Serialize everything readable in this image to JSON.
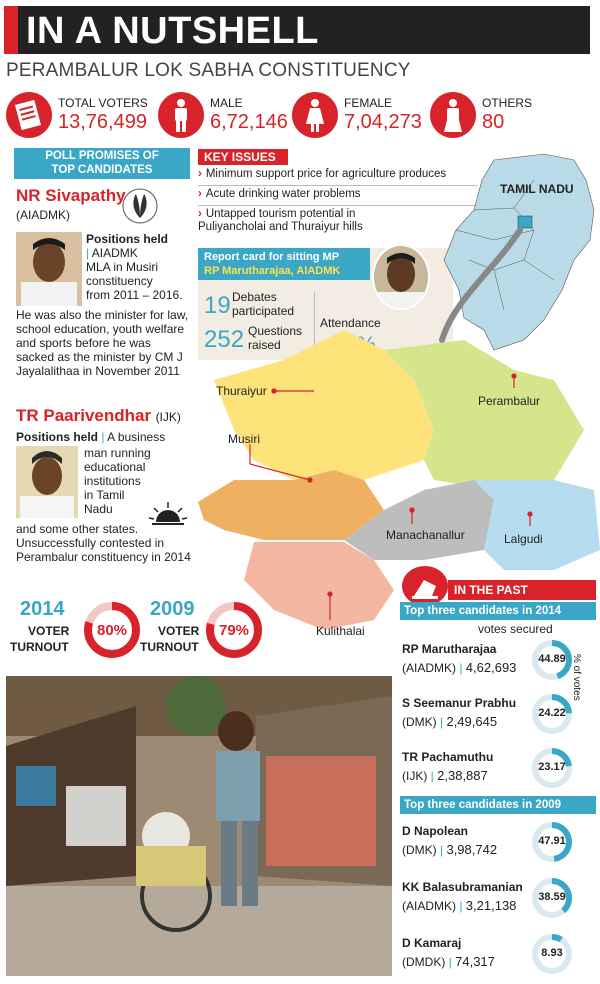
{
  "title": "IN A NUTSHELL",
  "subtitle": "PERAMBALUR LOK SABHA CONSTITUENCY",
  "stats": [
    {
      "label": "TOTAL VOTERS",
      "value": "13,76,499",
      "icon": "ballot-icon"
    },
    {
      "label": "MALE",
      "value": "6,72,146",
      "icon": "male-icon"
    },
    {
      "label": "FEMALE",
      "value": "7,04,273",
      "icon": "female-icon"
    },
    {
      "label": "OTHERS",
      "value": "80",
      "icon": "person-icon"
    }
  ],
  "poll_promises": {
    "header_line1": "POLL PROMISES OF",
    "header_line2": "TOP CANDIDATES",
    "candidate1": {
      "name": "NR Sivapathy",
      "party": "(AIADMK)",
      "positions_label": "Positions held",
      "positions_text1": "AIADMK",
      "positions_text2": "MLA in Musiri",
      "positions_text3": "constituency",
      "positions_text4": "from 2011 – 2016.",
      "body": "He was also the minister for law, school education, youth welfare and sports before he was sacked as the minister by CM J Jayalalithaa in November 2011"
    },
    "candidate2": {
      "name": "TR Paarivendhar",
      "party": "(IJK)",
      "positions_label": "Positions held",
      "positions_line1": "A business",
      "positions_line2": "man running",
      "positions_line3": "educational",
      "positions_line4": "institutions",
      "positions_line5": "in Tamil",
      "positions_line6": "Nadu",
      "body": "and some other states. Unsuccessfully contested in Perambalur constituency in 2014"
    }
  },
  "key_issues": {
    "header": "KEY ISSUES",
    "items": [
      "Minimum support price for agriculture produces",
      "Acute drinking water problems",
      "Untapped tourism potential in Puliyancholai and Thuraiyur hills"
    ]
  },
  "report_card": {
    "header_line1": "Report card for sitting MP",
    "header_line2": "RP Marutharajaa, AIADMK",
    "debates_num": "19",
    "debates_label": "Debates participated",
    "questions_num": "252",
    "questions_label": "Questions raised",
    "attendance_label": "Attendance",
    "attendance_value": "72%"
  },
  "map": {
    "state_label": "TAMIL NADU",
    "regions": [
      "Thuraiyur",
      "Perambalur",
      "Musiri",
      "Manachanallur",
      "Lalgudi",
      "Kulithalai"
    ]
  },
  "turnout": [
    {
      "year": "2014",
      "label1": "VOTER",
      "label2": "TURNOUT",
      "value": "80%",
      "pct": 80
    },
    {
      "year": "2009",
      "label1": "VOTER",
      "label2": "TURNOUT",
      "value": "79%",
      "pct": 79
    }
  ],
  "past": {
    "header": "IN THE PAST",
    "y2014_header": "Top three candidates in 2014",
    "votes_secured": "votes secured",
    "pct_votes": "% of votes",
    "y2014": [
      {
        "name": "RP Marutharajaa",
        "party": "(AIADMK)",
        "votes": "4,62,693",
        "pct": "44.89",
        "pct_num": 44.89
      },
      {
        "name": "S Seemanur Prabhu",
        "party": "(DMK)",
        "votes": "2,49,645",
        "pct": "24.22",
        "pct_num": 24.22
      },
      {
        "name": "TR Pachamuthu",
        "party": "(IJK)",
        "votes": "2,38,887",
        "pct": "23.17",
        "pct_num": 23.17
      }
    ],
    "y2009_header": "Top three candidates in 2009",
    "y2009": [
      {
        "name": "D Napolean",
        "party": "(DMK)",
        "votes": "3,98,742",
        "pct": "47.91",
        "pct_num": 47.91
      },
      {
        "name": "KK Balasubramanian",
        "party": "(AIADMK)",
        "votes": "3,21,138",
        "pct": "38.59",
        "pct_num": 38.59
      },
      {
        "name": "D Kamaraj",
        "party": "(DMDK)",
        "votes": "74,317",
        "pct": "8.93",
        "pct_num": 8.93
      }
    ]
  },
  "colors": {
    "red": "#d8232a",
    "teal": "#3aa7c6",
    "dark": "#222222"
  }
}
